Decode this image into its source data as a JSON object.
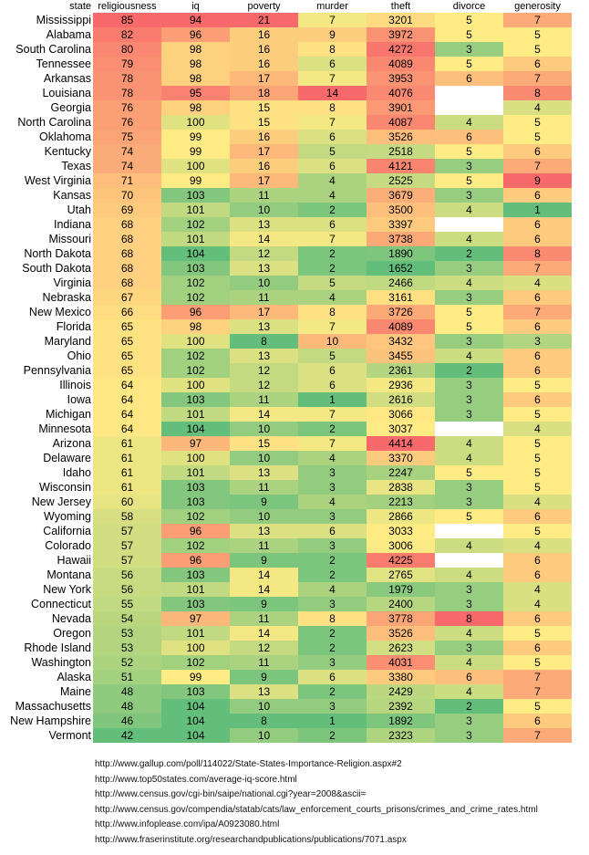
{
  "chart_data": {
    "type": "heatmap",
    "title": "",
    "row_header": "state",
    "columns": [
      "religiousness",
      "iq",
      "poverty",
      "murder",
      "theft",
      "divorce",
      "generosity"
    ],
    "color_scale": {
      "low_good": "#63be7b",
      "mid": "#ffeb84",
      "high_bad": "#f8696b",
      "higher_is_better": {
        "religiousness": false,
        "iq": true,
        "poverty": false,
        "murder": false,
        "theft": false,
        "divorce": false,
        "generosity": false
      }
    },
    "rows": [
      {
        "state": "Mississippi",
        "values": [
          85,
          94,
          21,
          7,
          3201,
          5,
          7
        ]
      },
      {
        "state": "Alabama",
        "values": [
          82,
          96,
          16,
          9,
          3972,
          5,
          5
        ]
      },
      {
        "state": "South Carolina",
        "values": [
          80,
          98,
          16,
          8,
          4272,
          3,
          5
        ]
      },
      {
        "state": "Tennessee",
        "values": [
          79,
          98,
          16,
          6,
          4089,
          5,
          6
        ]
      },
      {
        "state": "Arkansas",
        "values": [
          78,
          98,
          17,
          7,
          3953,
          6,
          7
        ]
      },
      {
        "state": "Louisiana",
        "values": [
          78,
          95,
          18,
          14,
          4076,
          null,
          8
        ]
      },
      {
        "state": "Georgia",
        "values": [
          76,
          98,
          15,
          8,
          3901,
          null,
          4
        ]
      },
      {
        "state": "North Carolina",
        "values": [
          76,
          100,
          15,
          7,
          4087,
          4,
          5
        ]
      },
      {
        "state": "Oklahoma",
        "values": [
          75,
          99,
          16,
          6,
          3526,
          6,
          5
        ]
      },
      {
        "state": "Kentucky",
        "values": [
          74,
          99,
          17,
          5,
          2518,
          5,
          6
        ]
      },
      {
        "state": "Texas",
        "values": [
          74,
          100,
          16,
          6,
          4121,
          3,
          7
        ]
      },
      {
        "state": "West Virginia",
        "values": [
          71,
          99,
          17,
          4,
          2525,
          5,
          9
        ]
      },
      {
        "state": "Kansas",
        "values": [
          70,
          103,
          11,
          4,
          3679,
          3,
          6
        ]
      },
      {
        "state": "Utah",
        "values": [
          69,
          101,
          10,
          2,
          3500,
          4,
          1
        ]
      },
      {
        "state": "Indiana",
        "values": [
          68,
          102,
          13,
          6,
          3397,
          null,
          6
        ]
      },
      {
        "state": "Missouri",
        "values": [
          68,
          101,
          14,
          7,
          3738,
          4,
          6
        ]
      },
      {
        "state": "North Dakota",
        "values": [
          68,
          104,
          12,
          2,
          1890,
          2,
          8
        ]
      },
      {
        "state": "South Dakota",
        "values": [
          68,
          103,
          13,
          2,
          1652,
          3,
          7
        ]
      },
      {
        "state": "Virginia",
        "values": [
          68,
          102,
          10,
          5,
          2466,
          4,
          4
        ]
      },
      {
        "state": "Nebraska",
        "values": [
          67,
          102,
          11,
          4,
          3161,
          3,
          6
        ]
      },
      {
        "state": "New Mexico",
        "values": [
          66,
          96,
          17,
          8,
          3726,
          5,
          7
        ]
      },
      {
        "state": "Florida",
        "values": [
          65,
          98,
          13,
          7,
          4089,
          5,
          6
        ]
      },
      {
        "state": "Maryland",
        "values": [
          65,
          100,
          8,
          10,
          3432,
          3,
          3
        ]
      },
      {
        "state": "Ohio",
        "values": [
          65,
          102,
          13,
          5,
          3455,
          4,
          6
        ]
      },
      {
        "state": "Pennsylvania",
        "values": [
          65,
          102,
          12,
          6,
          2361,
          2,
          6
        ]
      },
      {
        "state": "Illinois",
        "values": [
          64,
          100,
          12,
          6,
          2936,
          3,
          5
        ]
      },
      {
        "state": "Iowa",
        "values": [
          64,
          103,
          11,
          1,
          2616,
          3,
          6
        ]
      },
      {
        "state": "Michigan",
        "values": [
          64,
          101,
          14,
          7,
          3066,
          3,
          5
        ]
      },
      {
        "state": "Minnesota",
        "values": [
          64,
          104,
          10,
          2,
          3037,
          null,
          4
        ]
      },
      {
        "state": "Arizona",
        "values": [
          61,
          97,
          15,
          7,
          4414,
          4,
          5
        ]
      },
      {
        "state": "Delaware",
        "values": [
          61,
          100,
          10,
          4,
          3370,
          4,
          5
        ]
      },
      {
        "state": "Idaho",
        "values": [
          61,
          101,
          13,
          3,
          2247,
          5,
          5
        ]
      },
      {
        "state": "Wisconsin",
        "values": [
          61,
          103,
          11,
          3,
          2838,
          3,
          5
        ]
      },
      {
        "state": "New Jersey",
        "values": [
          60,
          103,
          9,
          4,
          2213,
          3,
          4
        ]
      },
      {
        "state": "Wyoming",
        "values": [
          58,
          102,
          10,
          3,
          2866,
          5,
          6
        ]
      },
      {
        "state": "California",
        "values": [
          57,
          96,
          13,
          6,
          3033,
          null,
          5
        ]
      },
      {
        "state": "Colorado",
        "values": [
          57,
          102,
          11,
          3,
          3006,
          4,
          4
        ]
      },
      {
        "state": "Hawaii",
        "values": [
          57,
          96,
          9,
          2,
          4225,
          null,
          6
        ]
      },
      {
        "state": "Montana",
        "values": [
          56,
          103,
          14,
          2,
          2765,
          4,
          6
        ]
      },
      {
        "state": "New York",
        "values": [
          56,
          101,
          14,
          4,
          1979,
          3,
          4
        ]
      },
      {
        "state": "Connecticut",
        "values": [
          55,
          103,
          9,
          3,
          2400,
          3,
          4
        ]
      },
      {
        "state": "Nevada",
        "values": [
          54,
          97,
          11,
          8,
          3778,
          8,
          6
        ]
      },
      {
        "state": "Oregon",
        "values": [
          53,
          101,
          14,
          2,
          3526,
          4,
          5
        ]
      },
      {
        "state": "Rhode Island",
        "values": [
          53,
          100,
          12,
          2,
          2623,
          3,
          6
        ]
      },
      {
        "state": "Washington",
        "values": [
          52,
          102,
          11,
          3,
          4031,
          4,
          5
        ]
      },
      {
        "state": "Alaska",
        "values": [
          51,
          99,
          9,
          6,
          3380,
          6,
          7
        ]
      },
      {
        "state": "Maine",
        "values": [
          48,
          103,
          13,
          2,
          2429,
          4,
          7
        ]
      },
      {
        "state": "Massachusetts",
        "values": [
          48,
          104,
          10,
          3,
          2392,
          2,
          5
        ]
      },
      {
        "state": "New Hampshire",
        "values": [
          46,
          104,
          8,
          1,
          1892,
          3,
          6
        ]
      },
      {
        "state": "Vermont",
        "values": [
          42,
          104,
          10,
          2,
          2323,
          3,
          7
        ]
      }
    ]
  },
  "sources": [
    "http://www.gallup.com/poll/114022/State-States-Importance-Religion.aspx#2",
    "http://www.top50states.com/average-iq-score.html",
    "http://www.census.gov/cgi-bin/saipe/national.cgi?year=2008&ascii=",
    "http://www.census.gov/compendia/statab/cats/law_enforcement_courts_prisons/crimes_and_crime_rates.html",
    "http://www.infoplease.com/ipa/A0923080.html",
    "http://www.fraserinstitute.org/researchandpublications/publications/7071.aspx"
  ]
}
